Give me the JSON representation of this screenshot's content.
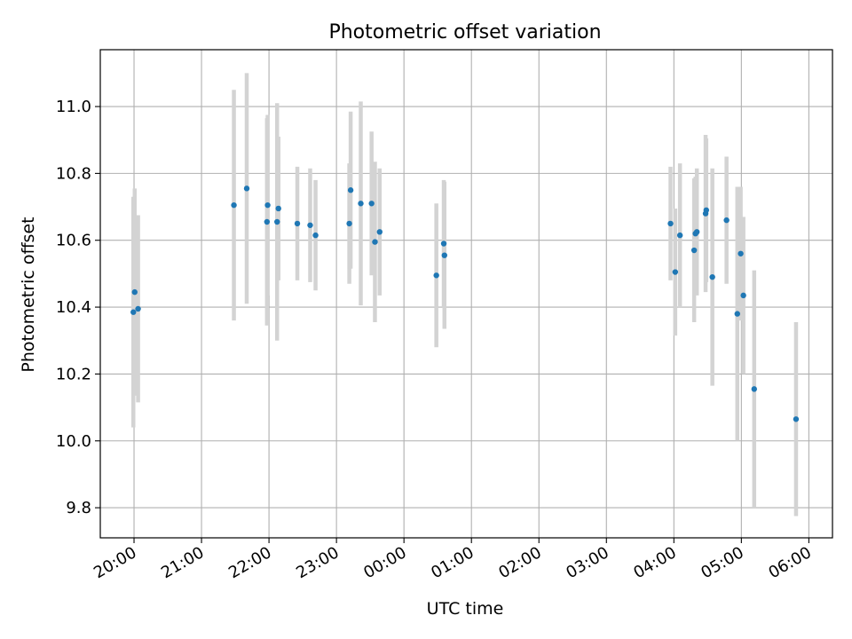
{
  "chart_data": {
    "type": "scatter",
    "title": "Photometric offset variation",
    "xlabel": "UTC time",
    "ylabel": "Photometric offset",
    "x_unit": "hours (UTC, 20:00 = 20, next-day 01:00 = 25)",
    "xlim": [
      19.5,
      30.35
    ],
    "ylim": [
      9.71,
      11.17
    ],
    "grid": true,
    "x_ticks": [
      {
        "value": 20,
        "label": "20:00"
      },
      {
        "value": 21,
        "label": "21:00"
      },
      {
        "value": 22,
        "label": "22:00"
      },
      {
        "value": 23,
        "label": "23:00"
      },
      {
        "value": 24,
        "label": "00:00"
      },
      {
        "value": 25,
        "label": "01:00"
      },
      {
        "value": 26,
        "label": "02:00"
      },
      {
        "value": 27,
        "label": "03:00"
      },
      {
        "value": 28,
        "label": "04:00"
      },
      {
        "value": 29,
        "label": "05:00"
      },
      {
        "value": 30,
        "label": "06:00"
      }
    ],
    "y_ticks": [
      {
        "value": 9.8,
        "label": "9.8"
      },
      {
        "value": 10.0,
        "label": "10.0"
      },
      {
        "value": 10.2,
        "label": "10.2"
      },
      {
        "value": 10.4,
        "label": "10.4"
      },
      {
        "value": 10.6,
        "label": "10.6"
      },
      {
        "value": 10.8,
        "label": "10.8"
      },
      {
        "value": 11.0,
        "label": "11.0"
      }
    ],
    "colors": {
      "point": "#1f77b4",
      "errorbar": "#d3d3d3",
      "grid": "#b0b0b0"
    },
    "points": [
      {
        "x": 19.99,
        "y": 10.385,
        "err": 0.345
      },
      {
        "x": 20.01,
        "y": 10.445,
        "err": 0.31
      },
      {
        "x": 20.06,
        "y": 10.395,
        "err": 0.28
      },
      {
        "x": 21.48,
        "y": 10.705,
        "err": 0.345
      },
      {
        "x": 21.67,
        "y": 10.755,
        "err": 0.345
      },
      {
        "x": 21.97,
        "y": 10.655,
        "err": 0.31
      },
      {
        "x": 21.98,
        "y": 10.705,
        "err": 0.27
      },
      {
        "x": 22.12,
        "y": 10.655,
        "err": 0.355
      },
      {
        "x": 22.14,
        "y": 10.695,
        "err": 0.215
      },
      {
        "x": 22.42,
        "y": 10.65,
        "err": 0.17
      },
      {
        "x": 22.61,
        "y": 10.645,
        "err": 0.17
      },
      {
        "x": 22.69,
        "y": 10.615,
        "err": 0.165
      },
      {
        "x": 23.19,
        "y": 10.65,
        "err": 0.18
      },
      {
        "x": 23.21,
        "y": 10.75,
        "err": 0.235
      },
      {
        "x": 23.36,
        "y": 10.71,
        "err": 0.305
      },
      {
        "x": 23.52,
        "y": 10.71,
        "err": 0.215
      },
      {
        "x": 23.57,
        "y": 10.595,
        "err": 0.24
      },
      {
        "x": 23.64,
        "y": 10.625,
        "err": 0.19
      },
      {
        "x": 24.48,
        "y": 10.495,
        "err": 0.215
      },
      {
        "x": 24.59,
        "y": 10.59,
        "err": 0.19
      },
      {
        "x": 24.6,
        "y": 10.555,
        "err": 0.22
      },
      {
        "x": 27.95,
        "y": 10.65,
        "err": 0.17
      },
      {
        "x": 28.02,
        "y": 10.505,
        "err": 0.19
      },
      {
        "x": 28.09,
        "y": 10.615,
        "err": 0.215
      },
      {
        "x": 28.3,
        "y": 10.57,
        "err": 0.215
      },
      {
        "x": 28.32,
        "y": 10.62,
        "err": 0.17
      },
      {
        "x": 28.34,
        "y": 10.625,
        "err": 0.19
      },
      {
        "x": 28.47,
        "y": 10.68,
        "err": 0.235
      },
      {
        "x": 28.48,
        "y": 10.69,
        "err": 0.215
      },
      {
        "x": 28.57,
        "y": 10.49,
        "err": 0.325
      },
      {
        "x": 28.78,
        "y": 10.66,
        "err": 0.19
      },
      {
        "x": 28.94,
        "y": 10.38,
        "err": 0.38
      },
      {
        "x": 28.99,
        "y": 10.56,
        "err": 0.2
      },
      {
        "x": 29.03,
        "y": 10.435,
        "err": 0.235
      },
      {
        "x": 29.19,
        "y": 10.155,
        "err": 0.355
      },
      {
        "x": 29.81,
        "y": 10.065,
        "err": 0.29
      }
    ]
  }
}
